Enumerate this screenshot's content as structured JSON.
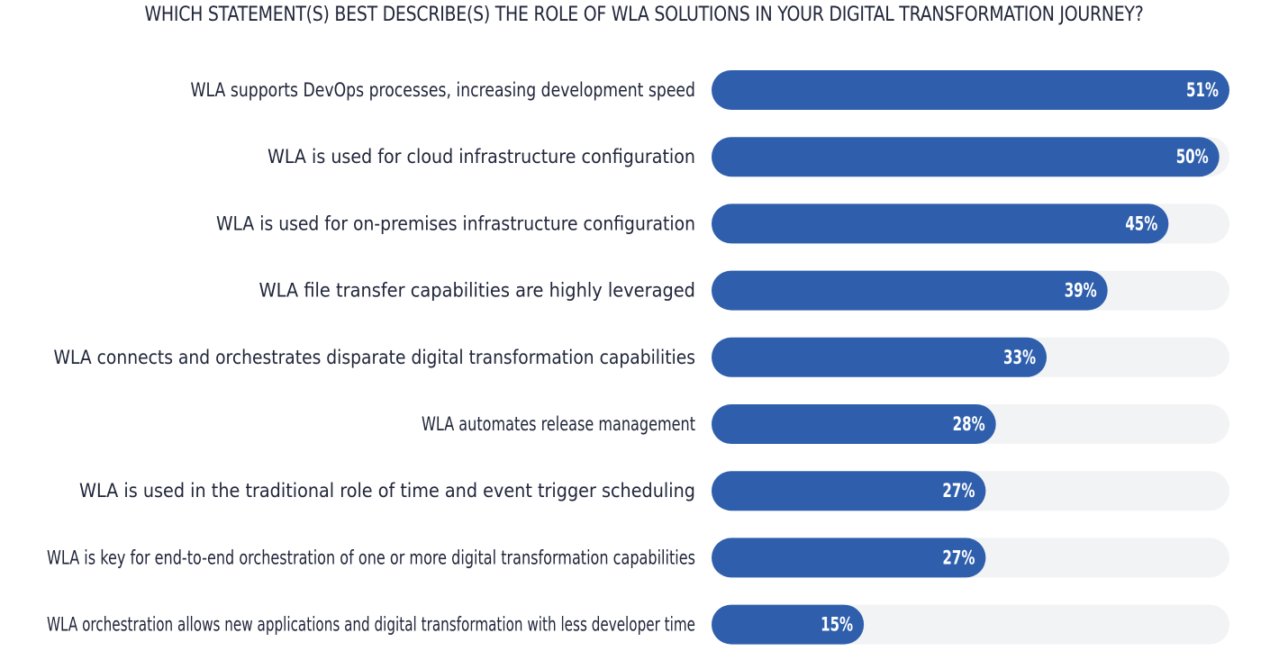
{
  "chart_data": {
    "type": "bar",
    "orientation": "horizontal",
    "title": "WHICH STATEMENT(S) BEST DESCRIBE(S) THE ROLE OF WLA SOLUTIONS IN YOUR DIGITAL TRANSFORMATION JOURNEY?",
    "categories": [
      "WLA supports DevOps processes, increasing development speed",
      "WLA is used for cloud infrastructure configuration",
      "WLA is used for on-premises infrastructure configuration",
      "WLA file transfer capabilities are highly leveraged",
      "WLA connects and orchestrates disparate digital transformation capabilities",
      "WLA automates release management",
      "WLA is used in the traditional role of time and event trigger scheduling",
      "WLA is key for end-to-end orchestration of one or more digital transformation capabilities",
      "WLA orchestration allows new applications and digital transformation with less developer time"
    ],
    "values": [
      51,
      50,
      45,
      39,
      33,
      28,
      27,
      27,
      15
    ],
    "value_labels": [
      "51%",
      "50%",
      "45%",
      "39%",
      "33%",
      "28%",
      "27%",
      "27%",
      "15%"
    ],
    "xlim": [
      0,
      51
    ],
    "grid": false,
    "legend": "none",
    "colors": {
      "bar": "#2f5fac",
      "track": "#f2f3f5",
      "text": "#20263a",
      "value_text": "#ffffff"
    }
  }
}
